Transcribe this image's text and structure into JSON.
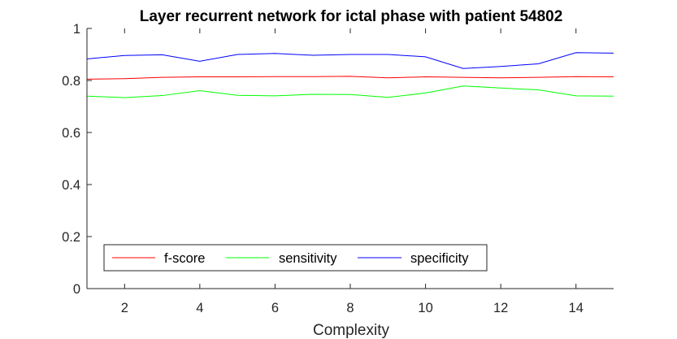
{
  "chart_data": {
    "type": "line",
    "title": "Layer recurrent network for ictal phase with patient 54802",
    "xlabel": "Complexity",
    "ylabel": "",
    "xlim": [
      1,
      15
    ],
    "ylim": [
      0,
      1
    ],
    "xticks": [
      2,
      4,
      6,
      8,
      10,
      12,
      14
    ],
    "yticks": [
      0,
      0.2,
      0.4,
      0.6,
      0.8,
      1
    ],
    "ytick_labels": [
      "0",
      "0.2",
      "0.4",
      "0.6",
      "0.8",
      "1"
    ],
    "x": [
      1,
      2,
      3,
      4,
      5,
      6,
      7,
      8,
      9,
      10,
      11,
      12,
      13,
      14,
      15
    ],
    "series": [
      {
        "name": "f-score",
        "color": "#ff0000",
        "values": [
          0.805,
          0.807,
          0.812,
          0.814,
          0.814,
          0.815,
          0.815,
          0.816,
          0.81,
          0.814,
          0.812,
          0.81,
          0.812,
          0.815,
          0.814
        ]
      },
      {
        "name": "sensitivity",
        "color": "#00ff00",
        "values": [
          0.74,
          0.734,
          0.742,
          0.761,
          0.743,
          0.741,
          0.747,
          0.746,
          0.735,
          0.752,
          0.779,
          0.771,
          0.764,
          0.741,
          0.74
        ]
      },
      {
        "name": "specificity",
        "color": "#0000ff",
        "values": [
          0.883,
          0.896,
          0.899,
          0.874,
          0.9,
          0.904,
          0.897,
          0.9,
          0.9,
          0.891,
          0.846,
          0.854,
          0.864,
          0.907,
          0.905
        ]
      }
    ],
    "legend_position": "bottom-left",
    "grid": false
  }
}
